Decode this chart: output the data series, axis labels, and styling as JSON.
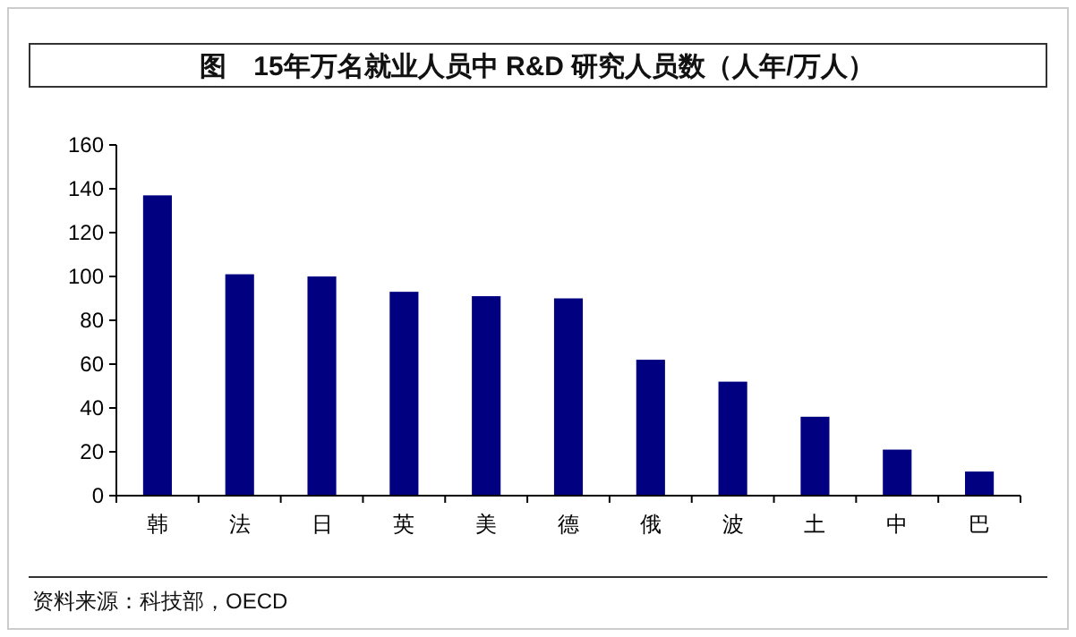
{
  "chart_data": {
    "type": "bar",
    "title": "图　15年万名就业人员中 R&D 研究人员数（人年/万人）",
    "categories": [
      "韩",
      "法",
      "日",
      "英",
      "美",
      "德",
      "俄",
      "波",
      "土",
      "中",
      "巴"
    ],
    "values": [
      137,
      101,
      100,
      93,
      91,
      90,
      62,
      52,
      36,
      21,
      11
    ],
    "color": "#000080",
    "ylim": [
      0,
      160
    ],
    "yticks": [
      0,
      20,
      40,
      60,
      80,
      100,
      120,
      140,
      160
    ],
    "annotations": [
      "资料来源：科技部，OECD"
    ]
  }
}
